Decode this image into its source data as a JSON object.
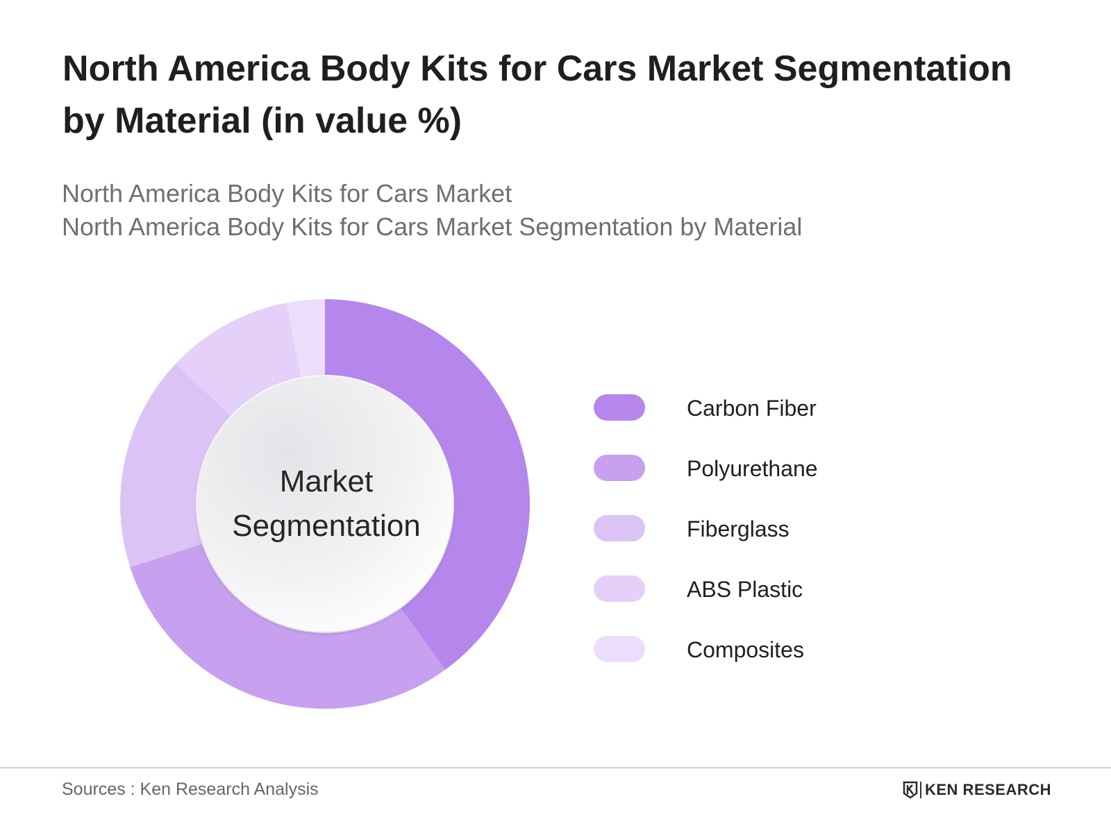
{
  "title": "North America Body Kits for Cars Market Segmentation by Material (in value %)",
  "subtitle_lines": [
    "North America Body Kits for Cars Market",
    "North America Body Kits for Cars Market Segmentation by Material"
  ],
  "center_label": [
    "Market",
    "Segmentation"
  ],
  "chart_data": {
    "type": "pie",
    "style": "donut",
    "categories": [
      "Carbon Fiber",
      "Polyurethane",
      "Fiberglass",
      "ABS Plastic",
      "Composites"
    ],
    "values": [
      40,
      30,
      17,
      10,
      3
    ],
    "colors": [
      "#b586ec",
      "#c7a0f0",
      "#dcc3f6",
      "#e4d0f8",
      "#ecdefa"
    ],
    "legend_position": "right",
    "start_angle": "12 o'clock",
    "direction": "clockwise"
  },
  "footer": {
    "sources": "Sources : Ken Research Analysis",
    "brand": "KEN RESEARCH"
  }
}
